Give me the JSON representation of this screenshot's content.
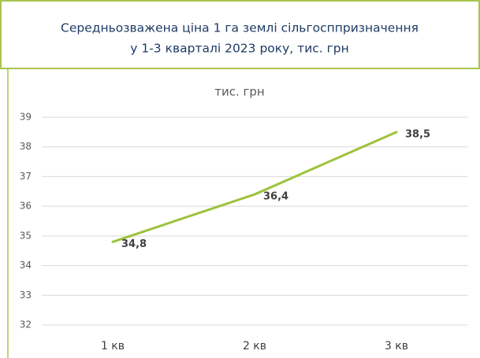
{
  "chart_data": {
    "type": "line",
    "title": [
      "Середньозважена ціна 1 га землі сільгосппризначення",
      "у 1-3 кварталі 2023 року, тис. грн"
    ],
    "subtitle": "тис. грн",
    "categories": [
      "1 кв",
      "2 кв",
      "3 кв"
    ],
    "series": [
      {
        "name": "тис. грн",
        "color": "#9dc23b",
        "values": [
          34.8,
          36.4,
          38.5
        ],
        "value_labels": [
          "34,8",
          "36,4",
          "38,5"
        ]
      }
    ],
    "ylim": [
      32,
      39
    ],
    "yticks": [
      32,
      33,
      34,
      35,
      36,
      37,
      38,
      39
    ],
    "grid": true
  }
}
